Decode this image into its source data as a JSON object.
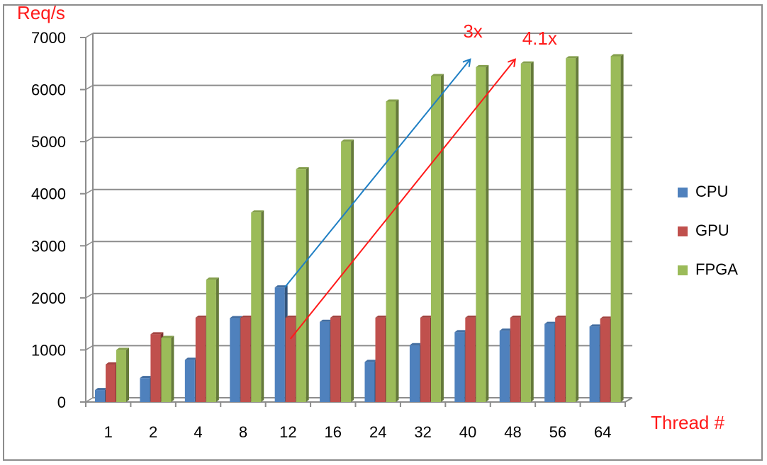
{
  "chart_data": {
    "type": "bar",
    "ylabel": "Req/s",
    "xlabel": "Thread #",
    "ylim": [
      0,
      7000
    ],
    "yticks": [
      0,
      1000,
      2000,
      3000,
      4000,
      5000,
      6000,
      7000
    ],
    "categories": [
      "1",
      "2",
      "4",
      "8",
      "12",
      "16",
      "24",
      "32",
      "40",
      "48",
      "56",
      "64"
    ],
    "series": [
      {
        "name": "CPU",
        "color": "#4f81bd",
        "values": [
          230,
          460,
          810,
          1610,
          2200,
          1540,
          770,
          1090,
          1340,
          1370,
          1500,
          1450
        ]
      },
      {
        "name": "GPU",
        "color": "#c0504d",
        "values": [
          720,
          1300,
          1620,
          1620,
          1620,
          1620,
          1620,
          1620,
          1620,
          1620,
          1620,
          1600
        ]
      },
      {
        "name": "FPGA",
        "color": "#9bbb59",
        "values": [
          1000,
          1230,
          2350,
          3640,
          4470,
          5000,
          5770,
          6260,
          6430,
          6500,
          6600,
          6640
        ]
      }
    ],
    "grid": true,
    "legend_position": "right",
    "annotations": [
      {
        "text": "3x",
        "color": "#ff1a1a",
        "arrow_color": "#1f7fc4",
        "from_category": "12",
        "from_value": 2200,
        "to_category": "40",
        "to_value": 6500
      },
      {
        "text": "4.1x",
        "color": "#ff1a1a",
        "arrow_color": "#ff1a1a",
        "from_category": "12",
        "from_value": 1620,
        "to_category": "48",
        "to_value": 6500
      }
    ]
  }
}
